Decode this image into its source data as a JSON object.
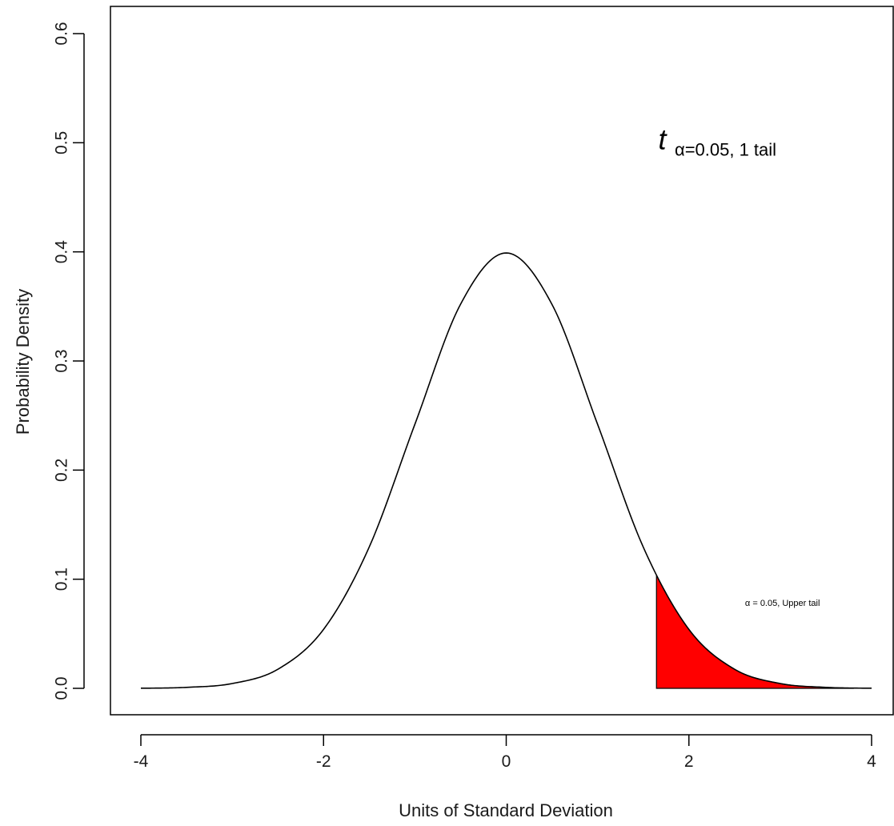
{
  "chart_data": {
    "type": "area",
    "title": "",
    "xlabel": "Units of Standard Deviation",
    "ylabel": "Probability Density",
    "xlim": [
      -4,
      4
    ],
    "ylim": [
      0,
      0.6
    ],
    "x_ticks": [
      "-4",
      "-2",
      "0",
      "2",
      "4"
    ],
    "x_tick_values": [
      -4,
      -2,
      0,
      2,
      4
    ],
    "y_ticks": [
      "0.0",
      "0.1",
      "0.2",
      "0.3",
      "0.4",
      "0.5",
      "0.6"
    ],
    "y_tick_values": [
      0,
      0.1,
      0.2,
      0.3,
      0.4,
      0.5,
      0.6
    ],
    "grid": false,
    "series": [
      {
        "x": [
          -4,
          -3.5,
          -3,
          -2.5,
          -2,
          -1.5,
          -1,
          -0.5,
          0,
          0.5,
          1,
          1.5,
          2,
          2.5,
          3,
          3.5,
          4
        ],
        "y": [
          0.0001,
          0.0009,
          0.0044,
          0.0175,
          0.054,
          0.1295,
          0.242,
          0.352,
          0.399,
          0.352,
          0.242,
          0.1295,
          0.054,
          0.0175,
          0.0044,
          0.0009,
          0.0001
        ],
        "color": "#000000"
      }
    ],
    "shaded_region": {
      "x_from": 1.645,
      "x_to": 3.8,
      "color": "#ff0000"
    },
    "annotations": {
      "critical_value": {
        "base": "t",
        "subscript": "α=0.05, 1  tail",
        "x": 1.7,
        "y": 0.5
      },
      "tail_note": {
        "text": "α = 0.05, Upper tail",
        "x": 2.65,
        "y": 0.077
      }
    }
  }
}
